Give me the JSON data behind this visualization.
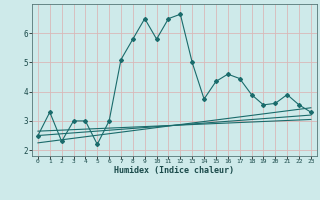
{
  "xlabel": "Humidex (Indice chaleur)",
  "bg_color": "#ceeaea",
  "grid_color": "#b8d8d8",
  "line_color": "#1a6b6b",
  "xlim": [
    -0.5,
    23.5
  ],
  "ylim": [
    1.8,
    7.0
  ],
  "xticks": [
    0,
    1,
    2,
    3,
    4,
    5,
    6,
    7,
    8,
    9,
    10,
    11,
    12,
    13,
    14,
    15,
    16,
    17,
    18,
    19,
    20,
    21,
    22,
    23
  ],
  "yticks": [
    2,
    3,
    4,
    5,
    6
  ],
  "series1_x": [
    0,
    1,
    2,
    3,
    4,
    5,
    6,
    7,
    8,
    9,
    10,
    11,
    12,
    13,
    14,
    15,
    16,
    17,
    18,
    19,
    20,
    21,
    22,
    23
  ],
  "series1_y": [
    2.5,
    3.3,
    2.3,
    3.0,
    3.0,
    2.2,
    3.0,
    5.1,
    5.8,
    6.5,
    5.8,
    6.5,
    6.65,
    5.0,
    3.75,
    4.35,
    4.6,
    4.45,
    3.9,
    3.55,
    3.6,
    3.9,
    3.55,
    3.3
  ],
  "series2_x": [
    0,
    23
  ],
  "series2_y": [
    2.25,
    3.45
  ],
  "series3_x": [
    0,
    23
  ],
  "series3_y": [
    2.5,
    3.2
  ],
  "series4_x": [
    0,
    23
  ],
  "series4_y": [
    2.65,
    3.05
  ]
}
